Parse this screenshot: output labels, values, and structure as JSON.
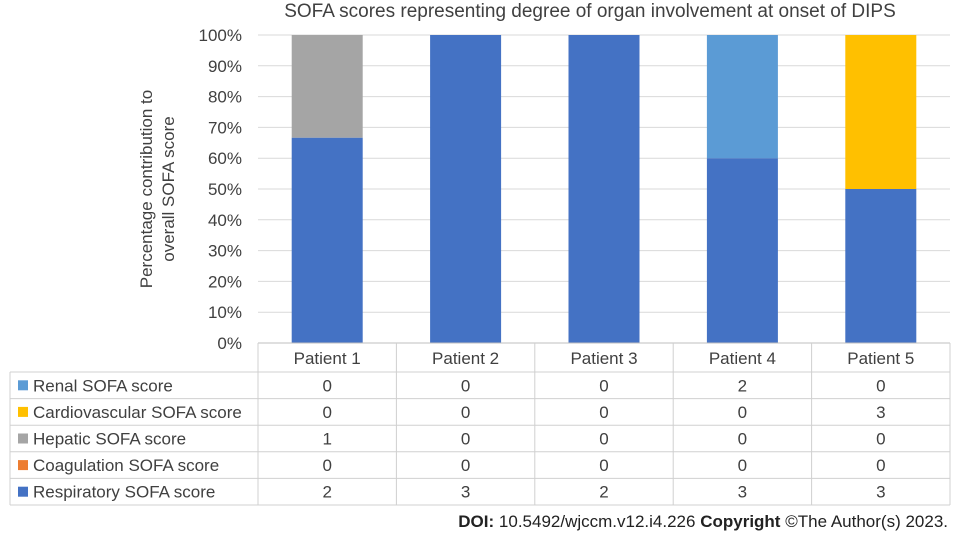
{
  "chart_data": {
    "type": "bar",
    "stacked": "percent",
    "title": "SOFA scores representing degree of organ involvement at onset of DIPS",
    "xlabel": "",
    "ylabel": "Percentage contribution to overall SOFA score",
    "ylim": [
      0,
      100
    ],
    "yticks": [
      "0%",
      "10%",
      "20%",
      "30%",
      "40%",
      "50%",
      "60%",
      "70%",
      "80%",
      "90%",
      "100%"
    ],
    "grid": true,
    "legend_position": "data-table-left",
    "categories": [
      "Patient 1",
      "Patient 2",
      "Patient 3",
      "Patient 4",
      "Patient 5"
    ],
    "series": [
      {
        "name": "Renal SOFA score",
        "color": "#5b9bd5",
        "values": [
          0,
          0,
          0,
          2,
          0
        ]
      },
      {
        "name": "Cardiovascular SOFA score",
        "color": "#ffc000",
        "values": [
          0,
          0,
          0,
          0,
          3
        ]
      },
      {
        "name": "Hepatic SOFA score",
        "color": "#a5a5a5",
        "values": [
          1,
          0,
          0,
          0,
          0
        ]
      },
      {
        "name": "Coagulation SOFA score",
        "color": "#ed7d31",
        "values": [
          0,
          0,
          0,
          0,
          0
        ]
      },
      {
        "name": "Respiratory SOFA score",
        "color": "#4472c4",
        "values": [
          2,
          3,
          2,
          3,
          3
        ]
      }
    ]
  },
  "footer": {
    "doi_label": "DOI:",
    "doi_value": "10.5492/wjccm.v12.i4.226",
    "copyright_label": "Copyright",
    "copyright_value": "©The Author(s) 2023."
  }
}
